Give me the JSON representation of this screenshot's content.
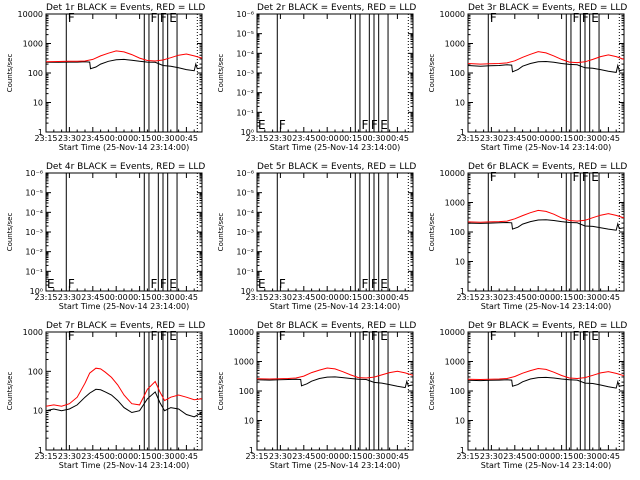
{
  "page": {
    "background": "#ffffff",
    "ink": "#000000"
  },
  "chart_data": {
    "type": "line",
    "grid": false,
    "x_tick_labels": [
      "23:15",
      "23:30",
      "23:45",
      "00:00",
      "00:15",
      "00:30",
      "00:45"
    ],
    "x_tick_minutes": [
      0,
      15,
      30,
      45,
      60,
      75,
      90
    ],
    "x_range_minutes": [
      0,
      100
    ],
    "xlabel": "Start Time (25-Nov-14 23:14:00)",
    "ylabel": "Counts/sec",
    "log_y": true,
    "series_colors": {
      "events": "#000000",
      "lld": "#ff0000"
    },
    "vertical_markers_minutes": [
      13,
      63,
      66,
      72,
      75,
      78,
      84
    ],
    "flag_labels": [
      {
        "text": "F",
        "minute": 14
      },
      {
        "text": "F",
        "minute": 67
      },
      {
        "text": "F",
        "minute": 73
      },
      {
        "text": "E",
        "minute": 79
      }
    ],
    "panels": [
      {
        "id": "1r",
        "title": "Det 1r BLACK = Events, RED = LLD",
        "has_data": true,
        "ylim": [
          1,
          10000
        ],
        "y_tick_labels": [
          "1",
          "10",
          "100",
          "1000",
          "10000"
        ],
        "lld": [
          [
            0,
            240
          ],
          [
            8,
            245
          ],
          [
            14,
            250
          ],
          [
            20,
            250
          ],
          [
            25,
            255
          ],
          [
            30,
            290
          ],
          [
            35,
            380
          ],
          [
            40,
            470
          ],
          [
            45,
            560
          ],
          [
            50,
            520
          ],
          [
            55,
            420
          ],
          [
            60,
            320
          ],
          [
            65,
            265
          ],
          [
            70,
            255
          ],
          [
            75,
            275
          ],
          [
            80,
            330
          ],
          [
            85,
            400
          ],
          [
            90,
            440
          ],
          [
            95,
            380
          ],
          [
            100,
            320
          ]
        ],
        "events": [
          [
            0,
            230
          ],
          [
            8,
            230
          ],
          [
            14,
            235
          ],
          [
            20,
            235
          ],
          [
            25,
            240
          ],
          [
            28,
            235
          ],
          [
            28.5,
            140
          ],
          [
            32,
            160
          ],
          [
            35,
            200
          ],
          [
            40,
            250
          ],
          [
            45,
            280
          ],
          [
            50,
            290
          ],
          [
            55,
            270
          ],
          [
            60,
            250
          ],
          [
            65,
            235
          ],
          [
            70,
            230
          ],
          [
            75,
            180
          ],
          [
            80,
            170
          ],
          [
            85,
            150
          ],
          [
            90,
            130
          ],
          [
            95,
            120
          ],
          [
            96,
            200
          ],
          [
            97,
            140
          ],
          [
            100,
            150
          ]
        ]
      },
      {
        "id": "2r",
        "title": "Det 2r BLACK = Events, RED = LLD",
        "has_data": false,
        "ylim": [
          1,
          1000000
        ],
        "y_tick_labels": [
          "10⁰",
          "10⁻¹",
          "10⁻²",
          "10⁻³",
          "10⁻⁴",
          "10⁻⁵",
          "10⁻⁶"
        ]
      },
      {
        "id": "3r",
        "title": "Det 3r BLACK = Events, RED = LLD",
        "has_data": true,
        "ylim": [
          1,
          10000
        ],
        "y_tick_labels": [
          "1",
          "10",
          "100",
          "1000",
          "10000"
        ],
        "lld": [
          [
            0,
            210
          ],
          [
            8,
            200
          ],
          [
            14,
            205
          ],
          [
            20,
            210
          ],
          [
            25,
            220
          ],
          [
            30,
            260
          ],
          [
            35,
            340
          ],
          [
            40,
            430
          ],
          [
            45,
            530
          ],
          [
            50,
            480
          ],
          [
            55,
            380
          ],
          [
            60,
            290
          ],
          [
            65,
            235
          ],
          [
            70,
            225
          ],
          [
            75,
            240
          ],
          [
            80,
            290
          ],
          [
            85,
            360
          ],
          [
            90,
            410
          ],
          [
            95,
            360
          ],
          [
            100,
            290
          ]
        ],
        "events": [
          [
            0,
            180
          ],
          [
            8,
            170
          ],
          [
            14,
            175
          ],
          [
            20,
            180
          ],
          [
            25,
            190
          ],
          [
            28,
            185
          ],
          [
            28.5,
            110
          ],
          [
            32,
            130
          ],
          [
            35,
            170
          ],
          [
            40,
            210
          ],
          [
            45,
            240
          ],
          [
            50,
            245
          ],
          [
            55,
            230
          ],
          [
            60,
            210
          ],
          [
            65,
            195
          ],
          [
            70,
            190
          ],
          [
            75,
            150
          ],
          [
            80,
            145
          ],
          [
            85,
            130
          ],
          [
            90,
            115
          ],
          [
            95,
            105
          ],
          [
            96,
            180
          ],
          [
            97,
            120
          ],
          [
            100,
            130
          ]
        ]
      },
      {
        "id": "4r",
        "title": "Det 4r BLACK = Events, RED = LLD",
        "has_data": false,
        "ylim": [
          1,
          1000000
        ],
        "y_tick_labels": [
          "10⁰",
          "10⁻¹",
          "10⁻²",
          "10⁻³",
          "10⁻⁴",
          "10⁻⁵",
          "10⁻⁶"
        ]
      },
      {
        "id": "5r",
        "title": "Det 5r BLACK = Events, RED = LLD",
        "has_data": false,
        "ylim": [
          1,
          1000000
        ],
        "y_tick_labels": [
          "10⁰",
          "10⁻¹",
          "10⁻²",
          "10⁻³",
          "10⁻⁴",
          "10⁻⁵",
          "10⁻⁶"
        ]
      },
      {
        "id": "6r",
        "title": "Det 6r BLACK = Events, RED = LLD",
        "has_data": true,
        "ylim": [
          1,
          10000
        ],
        "y_tick_labels": [
          "1",
          "10",
          "100",
          "1000",
          "10000"
        ],
        "lld": [
          [
            0,
            220
          ],
          [
            8,
            215
          ],
          [
            14,
            220
          ],
          [
            20,
            225
          ],
          [
            25,
            235
          ],
          [
            30,
            280
          ],
          [
            35,
            360
          ],
          [
            40,
            450
          ],
          [
            45,
            540
          ],
          [
            50,
            500
          ],
          [
            55,
            400
          ],
          [
            60,
            300
          ],
          [
            65,
            245
          ],
          [
            70,
            235
          ],
          [
            75,
            250
          ],
          [
            80,
            305
          ],
          [
            85,
            370
          ],
          [
            90,
            420
          ],
          [
            95,
            365
          ],
          [
            100,
            300
          ]
        ],
        "events": [
          [
            0,
            200
          ],
          [
            8,
            195
          ],
          [
            14,
            200
          ],
          [
            20,
            205
          ],
          [
            25,
            210
          ],
          [
            28,
            205
          ],
          [
            28.5,
            125
          ],
          [
            32,
            145
          ],
          [
            35,
            185
          ],
          [
            40,
            225
          ],
          [
            45,
            255
          ],
          [
            50,
            260
          ],
          [
            55,
            245
          ],
          [
            60,
            225
          ],
          [
            65,
            210
          ],
          [
            70,
            205
          ],
          [
            75,
            160
          ],
          [
            80,
            155
          ],
          [
            85,
            140
          ],
          [
            90,
            125
          ],
          [
            95,
            115
          ],
          [
            96,
            190
          ],
          [
            97,
            130
          ],
          [
            100,
            140
          ]
        ]
      },
      {
        "id": "7r",
        "title": "Det 7r BLACK = Events, RED = LLD",
        "has_data": true,
        "ylim": [
          1,
          1000
        ],
        "y_tick_labels": [
          "1",
          "10",
          "100",
          "1000"
        ],
        "lld": [
          [
            0,
            13
          ],
          [
            5,
            14
          ],
          [
            10,
            13
          ],
          [
            15,
            15
          ],
          [
            20,
            22
          ],
          [
            25,
            50
          ],
          [
            28,
            90
          ],
          [
            32,
            120
          ],
          [
            35,
            115
          ],
          [
            38,
            95
          ],
          [
            42,
            70
          ],
          [
            46,
            45
          ],
          [
            50,
            25
          ],
          [
            55,
            15
          ],
          [
            60,
            14
          ],
          [
            65,
            35
          ],
          [
            70,
            55
          ],
          [
            73,
            30
          ],
          [
            76,
            18
          ],
          [
            80,
            22
          ],
          [
            85,
            25
          ],
          [
            90,
            22
          ],
          [
            95,
            19
          ],
          [
            100,
            20
          ]
        ],
        "events": [
          [
            0,
            10
          ],
          [
            5,
            11
          ],
          [
            10,
            10
          ],
          [
            15,
            11
          ],
          [
            20,
            14
          ],
          [
            25,
            22
          ],
          [
            28,
            28
          ],
          [
            32,
            35
          ],
          [
            35,
            34
          ],
          [
            38,
            30
          ],
          [
            42,
            25
          ],
          [
            46,
            18
          ],
          [
            50,
            12
          ],
          [
            55,
            9
          ],
          [
            60,
            10
          ],
          [
            65,
            20
          ],
          [
            70,
            30
          ],
          [
            73,
            16
          ],
          [
            76,
            10
          ],
          [
            80,
            12
          ],
          [
            85,
            11
          ],
          [
            90,
            8
          ],
          [
            95,
            7
          ],
          [
            100,
            9
          ]
        ]
      },
      {
        "id": "8r",
        "title": "Det 8r BLACK = Events, RED = LLD",
        "has_data": true,
        "ylim": [
          1,
          10000
        ],
        "y_tick_labels": [
          "1",
          "10",
          "100",
          "1000",
          "10000"
        ],
        "lld": [
          [
            0,
            260
          ],
          [
            8,
            255
          ],
          [
            14,
            260
          ],
          [
            20,
            265
          ],
          [
            25,
            275
          ],
          [
            30,
            320
          ],
          [
            35,
            420
          ],
          [
            40,
            510
          ],
          [
            45,
            600
          ],
          [
            50,
            560
          ],
          [
            55,
            450
          ],
          [
            60,
            350
          ],
          [
            65,
            285
          ],
          [
            70,
            275
          ],
          [
            75,
            295
          ],
          [
            80,
            350
          ],
          [
            85,
            420
          ],
          [
            90,
            470
          ],
          [
            95,
            410
          ],
          [
            100,
            340
          ]
        ],
        "events": [
          [
            0,
            240
          ],
          [
            8,
            235
          ],
          [
            14,
            240
          ],
          [
            20,
            245
          ],
          [
            25,
            250
          ],
          [
            28,
            245
          ],
          [
            28.5,
            150
          ],
          [
            32,
            175
          ],
          [
            35,
            215
          ],
          [
            40,
            265
          ],
          [
            45,
            295
          ],
          [
            50,
            300
          ],
          [
            55,
            285
          ],
          [
            60,
            265
          ],
          [
            65,
            250
          ],
          [
            70,
            245
          ],
          [
            75,
            195
          ],
          [
            80,
            185
          ],
          [
            85,
            165
          ],
          [
            90,
            145
          ],
          [
            95,
            130
          ],
          [
            96,
            210
          ],
          [
            97,
            150
          ],
          [
            100,
            160
          ]
        ]
      },
      {
        "id": "9r",
        "title": "Det 9r BLACK = Events, RED = LLD",
        "has_data": true,
        "ylim": [
          1,
          10000
        ],
        "y_tick_labels": [
          "1",
          "10",
          "100",
          "1000",
          "10000"
        ],
        "lld": [
          [
            0,
            250
          ],
          [
            8,
            245
          ],
          [
            14,
            250
          ],
          [
            20,
            255
          ],
          [
            25,
            265
          ],
          [
            30,
            310
          ],
          [
            35,
            400
          ],
          [
            40,
            490
          ],
          [
            45,
            580
          ],
          [
            50,
            540
          ],
          [
            55,
            435
          ],
          [
            60,
            335
          ],
          [
            65,
            275
          ],
          [
            70,
            265
          ],
          [
            75,
            285
          ],
          [
            80,
            340
          ],
          [
            85,
            410
          ],
          [
            90,
            455
          ],
          [
            95,
            395
          ],
          [
            100,
            330
          ]
        ],
        "events": [
          [
            0,
            230
          ],
          [
            8,
            225
          ],
          [
            14,
            230
          ],
          [
            20,
            235
          ],
          [
            25,
            240
          ],
          [
            28,
            235
          ],
          [
            28.5,
            145
          ],
          [
            32,
            165
          ],
          [
            35,
            205
          ],
          [
            40,
            255
          ],
          [
            45,
            285
          ],
          [
            50,
            290
          ],
          [
            55,
            275
          ],
          [
            60,
            255
          ],
          [
            65,
            240
          ],
          [
            70,
            235
          ],
          [
            75,
            185
          ],
          [
            80,
            180
          ],
          [
            85,
            160
          ],
          [
            90,
            140
          ],
          [
            95,
            125
          ],
          [
            96,
            205
          ],
          [
            97,
            145
          ],
          [
            100,
            155
          ]
        ]
      }
    ]
  }
}
